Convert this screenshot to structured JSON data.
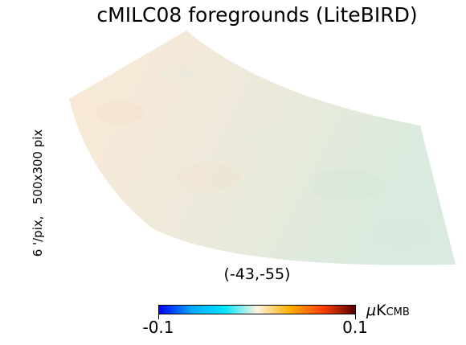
{
  "title": "cMILC08 foregrounds (LiteBIRD)",
  "side_label": "6 '/pix,   500x300 pix",
  "coordinates": "(-43,-55)",
  "colorbar": {
    "min_label": "-0.1",
    "max_label": "0.1",
    "unit_prefix": "μ",
    "unit_main": "K",
    "unit_sub": "CMB",
    "colormap": [
      "#0000ff",
      "#00a8ff",
      "#00e5ff",
      "#fff3e0",
      "#ffb000",
      "#ff4000",
      "#5a0000"
    ]
  },
  "map_colors": {
    "warm_tint": "#fbe9d6",
    "cool_tint": "#d9eadf",
    "mid_tint": "#ede9da"
  }
}
